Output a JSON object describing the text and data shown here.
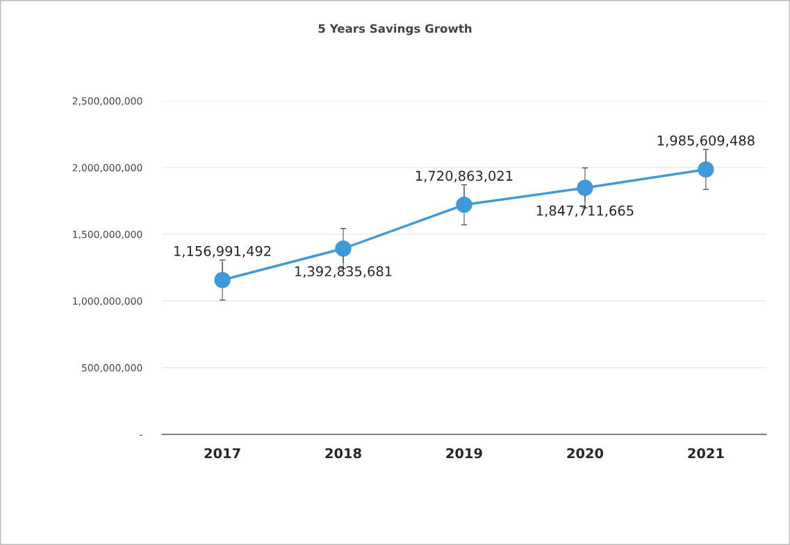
{
  "chart_data": {
    "type": "line",
    "title": "5 Years Savings Growth",
    "categories": [
      "2017",
      "2018",
      "2019",
      "2020",
      "2021"
    ],
    "series": [
      {
        "color": "#3f9ad9",
        "values": [
          1156991492,
          1392835681,
          1720863021,
          1847711665,
          1985609488
        ],
        "errors": [
          150000000,
          150000000,
          150000000,
          150000000,
          150000000
        ],
        "value_labels": [
          "1,156,991,492",
          "1,392,835,681",
          "1,720,863,021",
          "1,847,711,665",
          "1,985,609,488"
        ]
      }
    ],
    "ylim": [
      0,
      2500000000
    ],
    "yticks": [
      {
        "value": 0,
        "label": "-"
      },
      {
        "value": 500000000,
        "label": "500,000,000"
      },
      {
        "value": 1000000000,
        "label": "1,000,000,000"
      },
      {
        "value": 1500000000,
        "label": "1,500,000,000"
      },
      {
        "value": 2000000000,
        "label": "2,000,000,000"
      },
      {
        "value": 2500000000,
        "label": "2,500,000,000"
      }
    ],
    "grid": "y",
    "marker": "circle",
    "line_style": "solid"
  }
}
